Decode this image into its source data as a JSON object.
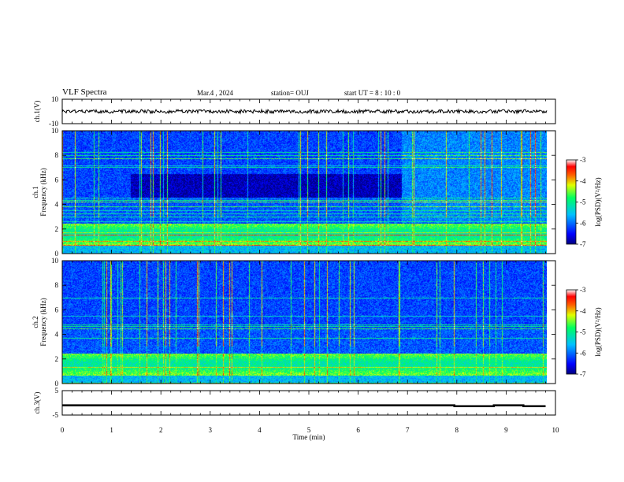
{
  "header": {
    "title": "VLF Spectra",
    "date": "Mar.4 , 2024",
    "station": "station= OUJ",
    "start": "start  UT =  8 : 10 : 0"
  },
  "chart_data": [
    {
      "type": "line",
      "panel": "ch1-waveform",
      "ylabel": "ch.1(V)",
      "ylim": [
        -10,
        10
      ],
      "yticks": [
        "10",
        "-10"
      ],
      "baseline": 0,
      "amplitude": 1.5
    },
    {
      "type": "heatmap",
      "panel": "ch1-spectrogram",
      "ylabel": "ch.1 Frequency (kHz)",
      "ylim": [
        0,
        10
      ],
      "yticks": [
        "0",
        "2",
        "4",
        "6",
        "8",
        "10"
      ],
      "xlim": [
        0,
        10
      ],
      "colorbar": {
        "label": "log(PSD)(V²/Hz)",
        "ticks": [
          "-3",
          "-4",
          "-5",
          "-6",
          "-7"
        ],
        "range": [
          -7,
          -3
        ]
      }
    },
    {
      "type": "heatmap",
      "panel": "ch2-spectrogram",
      "ylabel": "ch.2 Frequency (kHz)",
      "ylim": [
        0,
        10
      ],
      "yticks": [
        "0",
        "2",
        "4",
        "6",
        "8",
        "10"
      ],
      "xlim": [
        0,
        10
      ],
      "colorbar": {
        "label": "log(PSD)(V²/Hz)",
        "ticks": [
          "-3",
          "-4",
          "-5",
          "-6",
          "-7"
        ],
        "range": [
          -7,
          -3
        ]
      }
    },
    {
      "type": "line",
      "panel": "ch3-waveform",
      "ylabel": "ch.3(V)",
      "ylim": [
        -5,
        5
      ],
      "yticks": [
        "5",
        "-5"
      ],
      "level": -1,
      "steps": [
        [
          0,
          -1
        ],
        [
          7.95,
          -1
        ],
        [
          7.95,
          -1.4
        ],
        [
          8.75,
          -1.4
        ],
        [
          8.75,
          -1
        ],
        [
          9.35,
          -1
        ],
        [
          9.35,
          -1.4
        ],
        [
          9.8,
          -1.4
        ]
      ]
    }
  ],
  "xaxis": {
    "label": "Time (min)",
    "xlim": [
      0,
      10
    ],
    "ticks": [
      "0",
      "1",
      "2",
      "3",
      "4",
      "5",
      "6",
      "7",
      "8",
      "9",
      "10"
    ],
    "data_end": 9.83
  },
  "colors": {
    "axis": "#000000",
    "background": "#ffffff"
  }
}
